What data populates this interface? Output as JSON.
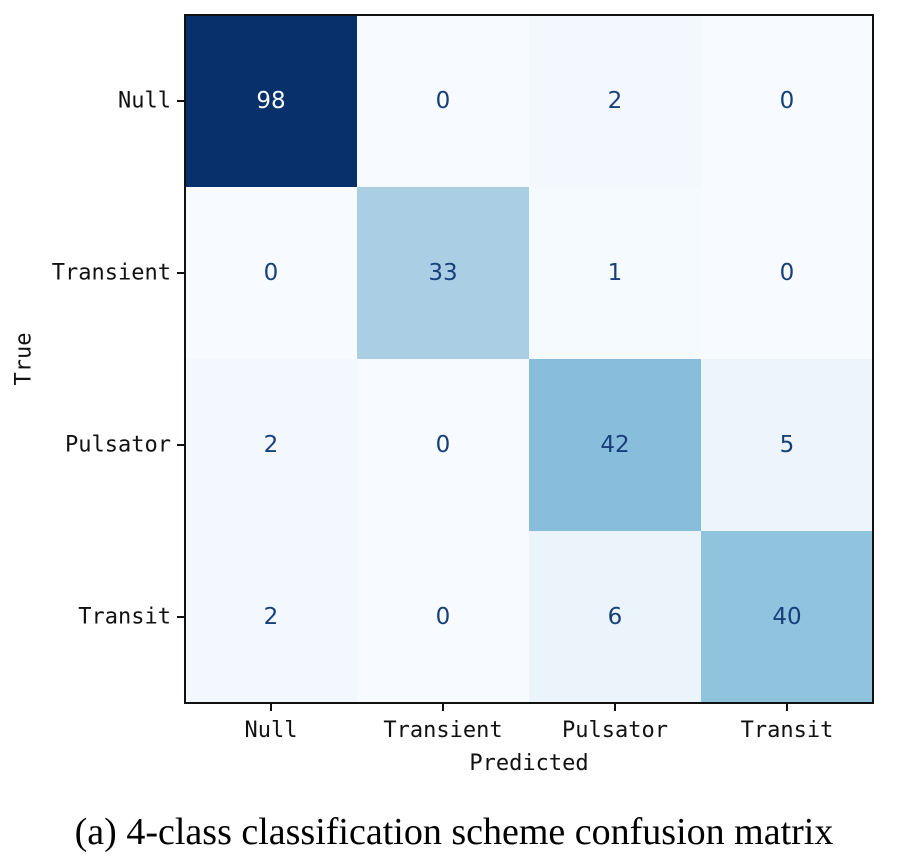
{
  "chart_data": {
    "type": "heatmap",
    "x_categories": [
      "Null",
      "Transient",
      "Pulsator",
      "Transit"
    ],
    "y_categories": [
      "Null",
      "Transient",
      "Pulsator",
      "Transit"
    ],
    "values": [
      [
        98,
        0,
        2,
        0
      ],
      [
        0,
        33,
        1,
        0
      ],
      [
        2,
        0,
        42,
        5
      ],
      [
        2,
        0,
        6,
        40
      ]
    ],
    "xlabel": "Predicted",
    "ylabel": "True",
    "colormap": "Blues",
    "vmin": 0,
    "vmax": 98,
    "colorbar": false,
    "grid": false
  },
  "caption": "(a) 4-class classification scheme confusion matrix"
}
